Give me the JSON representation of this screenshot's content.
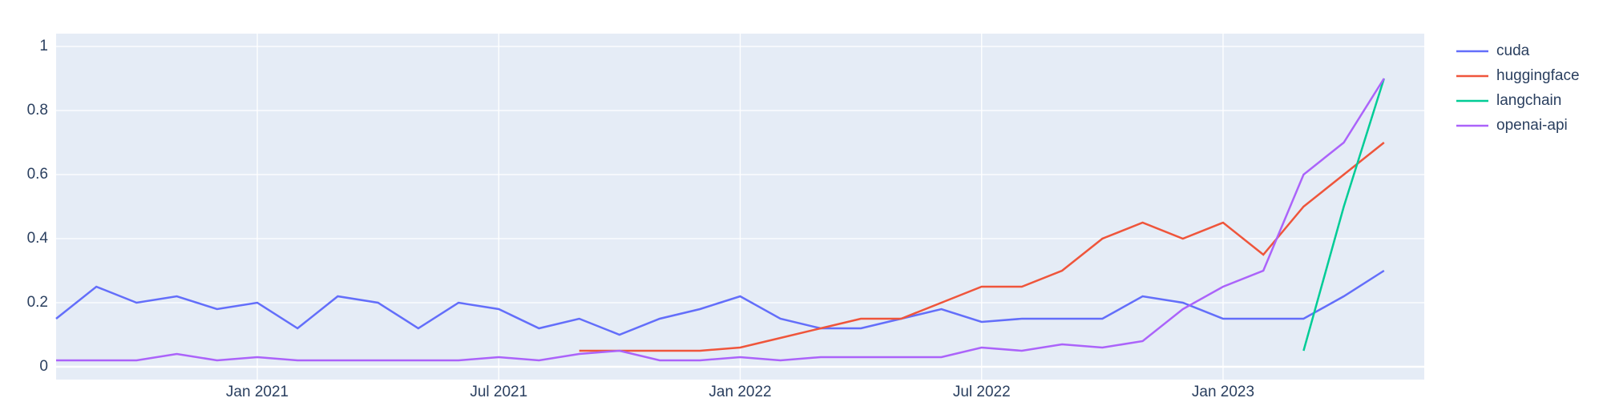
{
  "chart_data": {
    "type": "line",
    "x": [
      "2020-08",
      "2020-09",
      "2020-10",
      "2020-11",
      "2020-12",
      "2021-01",
      "2021-02",
      "2021-03",
      "2021-04",
      "2021-05",
      "2021-06",
      "2021-07",
      "2021-08",
      "2021-09",
      "2021-10",
      "2021-11",
      "2021-12",
      "2022-01",
      "2022-02",
      "2022-03",
      "2022-04",
      "2022-05",
      "2022-06",
      "2022-07",
      "2022-08",
      "2022-09",
      "2022-10",
      "2022-11",
      "2022-12",
      "2023-01",
      "2023-02",
      "2023-03",
      "2023-04",
      "2023-05"
    ],
    "series": [
      {
        "name": "cuda",
        "color": "#636efa",
        "values": [
          0.15,
          0.25,
          0.2,
          0.22,
          0.18,
          0.2,
          0.12,
          0.22,
          0.2,
          0.12,
          0.2,
          0.18,
          0.12,
          0.15,
          0.1,
          0.15,
          0.18,
          0.22,
          0.15,
          0.12,
          0.12,
          0.15,
          0.18,
          0.14,
          0.15,
          0.15,
          0.15,
          0.22,
          0.2,
          0.15,
          0.15,
          0.15,
          0.22,
          0.3
        ]
      },
      {
        "name": "huggingface",
        "color": "#EF553B",
        "values": [
          null,
          null,
          null,
          null,
          null,
          null,
          null,
          null,
          null,
          null,
          null,
          null,
          null,
          0.05,
          0.05,
          0.05,
          0.05,
          0.06,
          0.09,
          0.12,
          0.15,
          0.15,
          0.2,
          0.25,
          0.25,
          0.3,
          0.4,
          0.45,
          0.4,
          0.45,
          0.35,
          0.5,
          0.6,
          0.7
        ]
      },
      {
        "name": "langchain",
        "color": "#00cc96",
        "values": [
          null,
          null,
          null,
          null,
          null,
          null,
          null,
          null,
          null,
          null,
          null,
          null,
          null,
          null,
          null,
          null,
          null,
          null,
          null,
          null,
          null,
          null,
          null,
          null,
          null,
          null,
          null,
          null,
          null,
          null,
          null,
          0.05,
          0.5,
          0.9
        ]
      },
      {
        "name": "openai-api",
        "color": "#ab63fa",
        "values": [
          0.02,
          0.02,
          0.02,
          0.04,
          0.02,
          0.03,
          0.02,
          0.02,
          0.02,
          0.02,
          0.02,
          0.03,
          0.02,
          0.04,
          0.05,
          0.02,
          0.02,
          0.03,
          0.02,
          0.03,
          0.03,
          0.03,
          0.03,
          0.06,
          0.05,
          0.07,
          0.06,
          0.08,
          0.18,
          0.25,
          0.3,
          0.6,
          0.7,
          0.9
        ]
      }
    ],
    "xlim": [
      "2020-08",
      "2023-06"
    ],
    "xticks": [
      {
        "value": "2021-01",
        "label": "Jan 2021"
      },
      {
        "value": "2021-07",
        "label": "Jul 2021"
      },
      {
        "value": "2022-01",
        "label": "Jan 2022"
      },
      {
        "value": "2022-07",
        "label": "Jul 2022"
      },
      {
        "value": "2023-01",
        "label": "Jan 2023"
      }
    ],
    "ylim": [
      -0.04,
      1.04
    ],
    "yticks": [
      0,
      0.2,
      0.4,
      0.6,
      0.8,
      1
    ],
    "grid": true,
    "legend": "right"
  }
}
